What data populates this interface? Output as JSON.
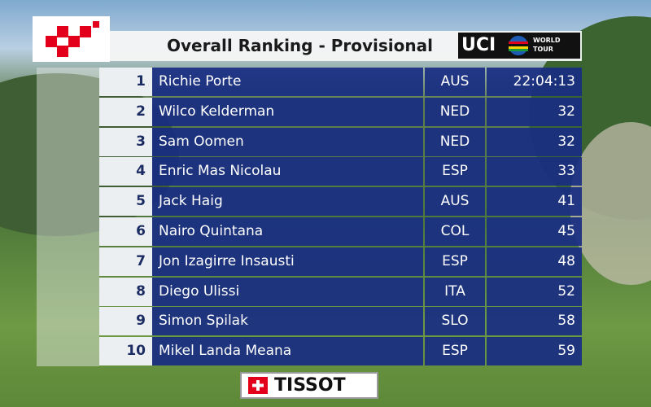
{
  "header": {
    "title": "Overall Ranking - Provisional",
    "logo": "UCI",
    "logo_subtitle": "WORLD TOUR"
  },
  "table": {
    "rows": [
      [
        1,
        "Richie Porte",
        "AUS",
        "22:04:13"
      ],
      [
        2,
        "Wilco Kelderman",
        "NED",
        32
      ],
      [
        3,
        "Sam Oomen",
        "NED",
        32
      ],
      [
        4,
        "Enric Mas Nicolau",
        "ESP",
        33
      ],
      [
        5,
        "Jack Haig",
        "AUS",
        41
      ],
      [
        6,
        "Nairo Quintana",
        "COL",
        45
      ],
      [
        7,
        "Jon Izagirre Insausti",
        "ESP",
        48
      ],
      [
        8,
        "Diego Ulissi",
        "ITA",
        52
      ],
      [
        9,
        "Simon Spilak",
        "SLO",
        58
      ],
      [
        10,
        "Mikel Landa Meana",
        "ESP",
        59
      ]
    ]
  },
  "footer": {
    "sponsor": "TISSOT"
  }
}
